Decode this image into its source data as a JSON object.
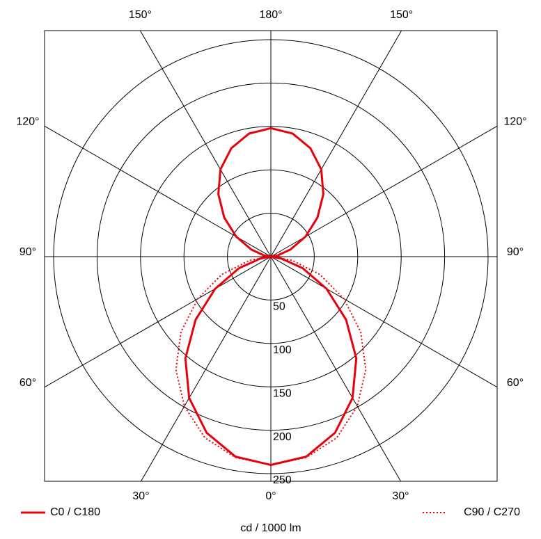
{
  "chart_data": {
    "type": "polar",
    "angles": [
      0,
      10,
      20,
      30,
      40,
      50,
      60,
      70,
      80,
      90,
      100,
      110,
      120,
      130,
      140,
      150,
      160,
      170,
      180
    ],
    "series": [
      {
        "name": "C0 / C180",
        "color": "#e8000b",
        "style": "solid",
        "values": [
          240,
          234,
          216,
          188,
          153,
          113,
          74,
          39,
          12,
          0,
          8,
          24,
          46,
          70,
          94,
          116,
          133,
          144,
          148
        ]
      },
      {
        "name": "C90 / C270",
        "color": "#e8000b",
        "style": "dotted",
        "values": [
          240,
          235,
          222,
          199,
          170,
          135,
          97,
          60,
          25,
          0,
          8,
          24,
          46,
          70,
          94,
          116,
          133,
          144,
          148
        ]
      }
    ],
    "rlim": [
      0,
      250
    ],
    "rticks": [
      50,
      100,
      150,
      200,
      250
    ],
    "angle_ticks": [
      {
        "value": 0,
        "label": "0°"
      },
      {
        "value": 30,
        "label": "30°"
      },
      {
        "value": 60,
        "label": "60°"
      },
      {
        "value": 90,
        "label": "90°"
      },
      {
        "value": 120,
        "label": "120°"
      },
      {
        "value": 150,
        "label": "150°"
      },
      {
        "value": 180,
        "label": "180°"
      }
    ],
    "unit_label": "cd / 1000 lm"
  }
}
